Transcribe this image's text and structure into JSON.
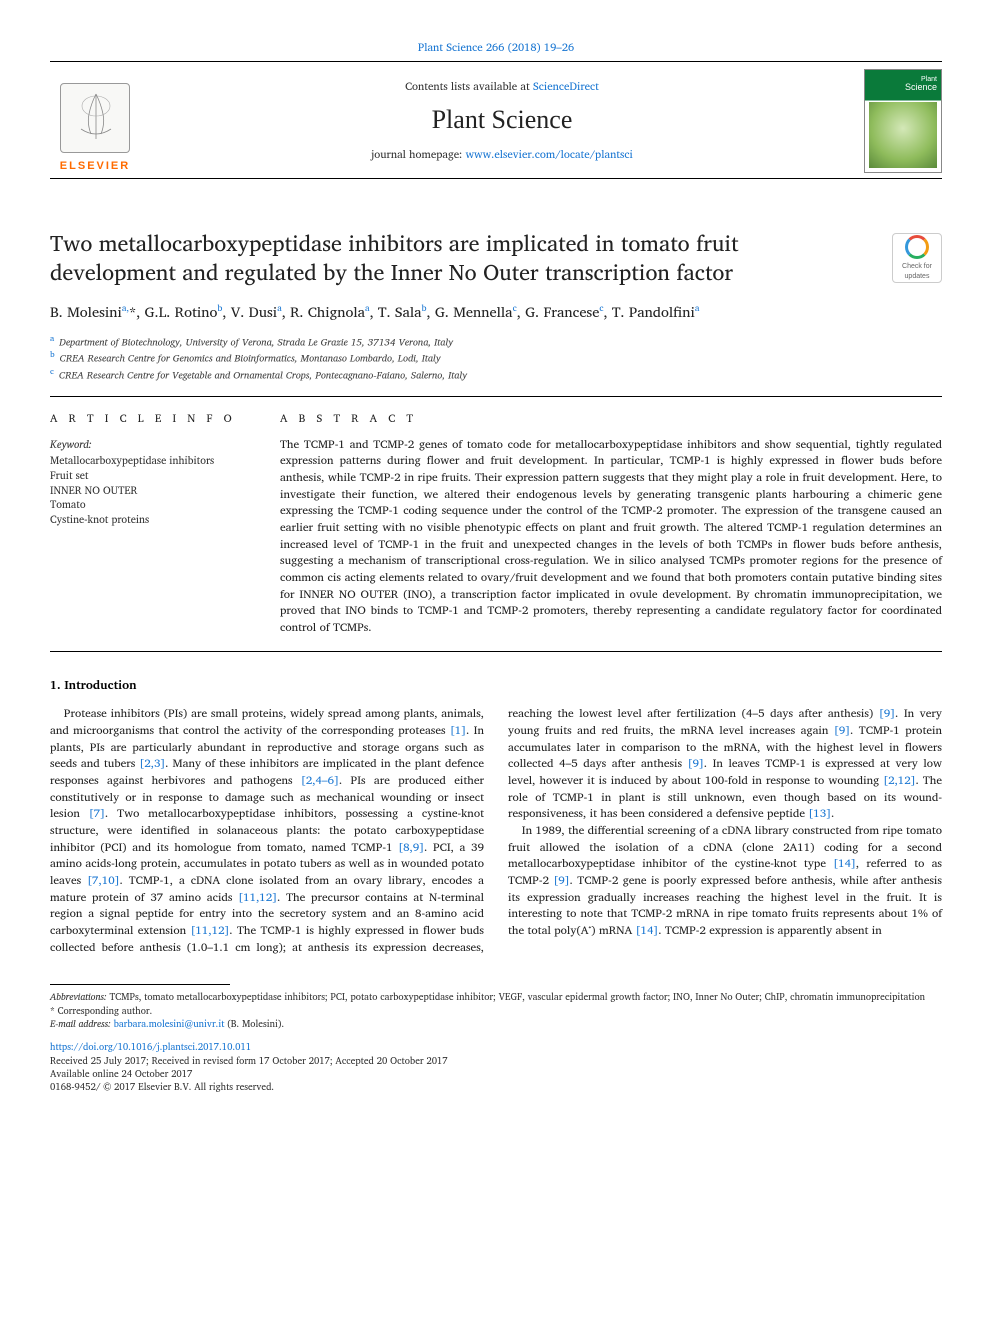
{
  "header": {
    "citation": "Plant Science 266 (2018) 19–26",
    "contents_prefix": "Contents lists available at ",
    "contents_link": "ScienceDirect",
    "journal_name": "Plant Science",
    "homepage_prefix": "journal homepage: ",
    "homepage_link": "www.elsevier.com/locate/plantsci",
    "publisher_name": "ELSEVIER",
    "cover_title_line1": "Plant",
    "cover_title_line2": "Science"
  },
  "crossmark": {
    "line1": "Check for",
    "line2": "updates"
  },
  "article": {
    "title": "Two metallocarboxypeptidase inhibitors are implicated in tomato fruit development and regulated by the Inner No Outer transcription factor",
    "authors_html": "B. Molesini<sup>a,</sup>*, G.L. Rotino<sup>b</sup>, V. Dusi<sup>a</sup>, R. Chignola<sup>a</sup>, T. Sala<sup>b</sup>, G. Mennella<sup>c</sup>, G. Francese<sup>c</sup>, T. Pandolfini<sup>a</sup>",
    "affiliations": [
      {
        "sup": "a",
        "text": "Department of Biotechnology, University of Verona, Strada Le Grazie 15, 37134 Verona, Italy"
      },
      {
        "sup": "b",
        "text": "CREA Research Centre for Genomics and Bioinformatics, Montanaso Lombardo, Lodi, Italy"
      },
      {
        "sup": "c",
        "text": "CREA Research Centre for Vegetable and Ornamental Crops, Pontecagnano-Faiano, Salerno, Italy"
      }
    ]
  },
  "info": {
    "heading": "A R T I C L E  I N F O",
    "keywords_label": "Keyword:",
    "keywords": [
      "Metallocarboxypeptidase inhibitors",
      "Fruit set",
      "INNER NO OUTER",
      "Tomato",
      "Cystine-knot proteins"
    ]
  },
  "abstract": {
    "heading": "A B S T R A C T",
    "text": "The TCMP-1 and TCMP-2 genes of tomato code for metallocarboxypeptidase inhibitors and show sequential, tightly regulated expression patterns during flower and fruit development. In particular, TCMP-1 is highly expressed in flower buds before anthesis, while TCMP-2 in ripe fruits. Their expression pattern suggests that they might play a role in fruit development. Here, to investigate their function, we altered their endogenous levels by generating transgenic plants harbouring a chimeric gene expressing the TCMP-1 coding sequence under the control of the TCMP-2 promoter. The expression of the transgene caused an earlier fruit setting with no visible phenotypic effects on plant and fruit growth. The altered TCMP-1 regulation determines an increased level of TCMP-1 in the fruit and unexpected changes in the levels of both TCMPs in flower buds before anthesis, suggesting a mechanism of transcriptional cross-regulation. We in silico analysed TCMPs promoter regions for the presence of common cis acting elements related to ovary/fruit development and we found that both promoters contain putative binding sites for INNER NO OUTER (INO), a transcription factor implicated in ovule development. By chromatin immunoprecipitation, we proved that INO binds to TCMP-1 and TCMP-2 promoters, thereby representing a candidate regulatory factor for coordinated control of TCMPs."
  },
  "body": {
    "heading": "1. Introduction",
    "para1_pre": "Protease inhibitors (PIs) are small proteins, widely spread among plants, animals, and microorganisms that control the activity of the corresponding proteases ",
    "ref1": "[1]",
    "para1_mid1": ". In plants, PIs are particularly abundant in reproductive and storage organs such as seeds and tubers ",
    "ref2": "[2,3]",
    "para1_mid2": ". Many of these inhibitors are implicated in the plant defence responses against herbivores and pathogens ",
    "ref3": "[2,4–6]",
    "para1_mid3": ". PIs are produced either constitutively or in response to damage such as mechanical wounding or insect lesion ",
    "ref4": "[7]",
    "para1_mid4": ". Two metallocarboxypeptidase inhibitors, possessing a cystine-knot structure, were identified in solanaceous plants: the potato carboxypeptidase inhibitor (PCI) and its homologue from tomato, named TCMP-1 ",
    "ref5": "[8,9]",
    "para1_mid5": ". PCI, a 39 amino acids-long protein, accumulates in potato tubers as well as in wounded potato leaves ",
    "ref6": "[7,10]",
    "para1_mid6": ". TCMP-1, a cDNA clone isolated from an ovary library, encodes a mature protein of 37 amino acids ",
    "ref7": "[11,12]",
    "para1_mid7": ". The precursor contains at N-terminal region a signal peptide for entry into the secretory system and an 8-amino acid carboxyterminal extension ",
    "ref8": "[11,12]",
    "para1_end": ". The TCMP-1 is highly expressed in ",
    "para2_pre": "flower buds collected before anthesis (1.0–1.1 cm long); at anthesis its expression decreases, reaching the lowest level after fertilization (4–5 days after anthesis) ",
    "ref9": "[9]",
    "para2_mid1": ". In very young fruits and red fruits, the mRNA level increases again ",
    "ref10": "[9]",
    "para2_mid2": ". TCMP-1 protein accumulates later in comparison to the mRNA, with the highest level in flowers collected 4–5 days after anthesis ",
    "ref11": "[9]",
    "para2_mid3": ". In leaves TCMP-1 is expressed at very low level, however it is induced by about 100-fold in response to wounding ",
    "ref12": "[2,12]",
    "para2_mid4": ". The role of TCMP-1 in plant is still unknown, even though based on its wound-responsiveness, it has been considered a defensive peptide ",
    "ref13": "[13]",
    "para2_end": ".",
    "para3_pre": "In 1989, the differential screening of a cDNA library constructed from ripe tomato fruit allowed the isolation of a cDNA (clone 2A11) coding for a second metallocarboxypeptidase inhibitor of the cystine-knot type ",
    "ref14": "[14]",
    "para3_mid1": ", referred to as TCMP-2 ",
    "ref15": "[9]",
    "para3_mid2": ". TCMP-2 gene is poorly expressed before anthesis, while after anthesis its expression gradually increases reaching the highest level in the fruit. It is interesting to note that TCMP-2 mRNA in ripe tomato fruits represents about 1% of the total poly(A⁺) mRNA ",
    "ref16": "[14]",
    "para3_end": ". TCMP-2 expression is apparently absent in"
  },
  "footnotes": {
    "abbr_label": "Abbreviations:",
    "abbr_text": " TCMPs, tomato metallocarboxypeptidase inhibitors; PCI, potato carboxypeptidase inhibitor; VEGF, vascular epidermal growth factor; INO, Inner No Outer; ChIP, chromatin immunoprecipitation",
    "corresp": "* Corresponding author.",
    "email_label": "E-mail address: ",
    "email": "barbara.molesini@univr.it",
    "email_name": " (B. Molesini)."
  },
  "doi": {
    "link": "https://doi.org/10.1016/j.plantsci.2017.10.011",
    "received": "Received 25 July 2017; Received in revised form 17 October 2017; Accepted 20 October 2017",
    "available": "Available online 24 October 2017",
    "copyright": "0168-9452/ © 2017 Elsevier B.V. All rights reserved."
  },
  "colors": {
    "link": "#1976d2",
    "publisher_orange": "#ff6b00",
    "cover_green": "#0a7a3a"
  }
}
